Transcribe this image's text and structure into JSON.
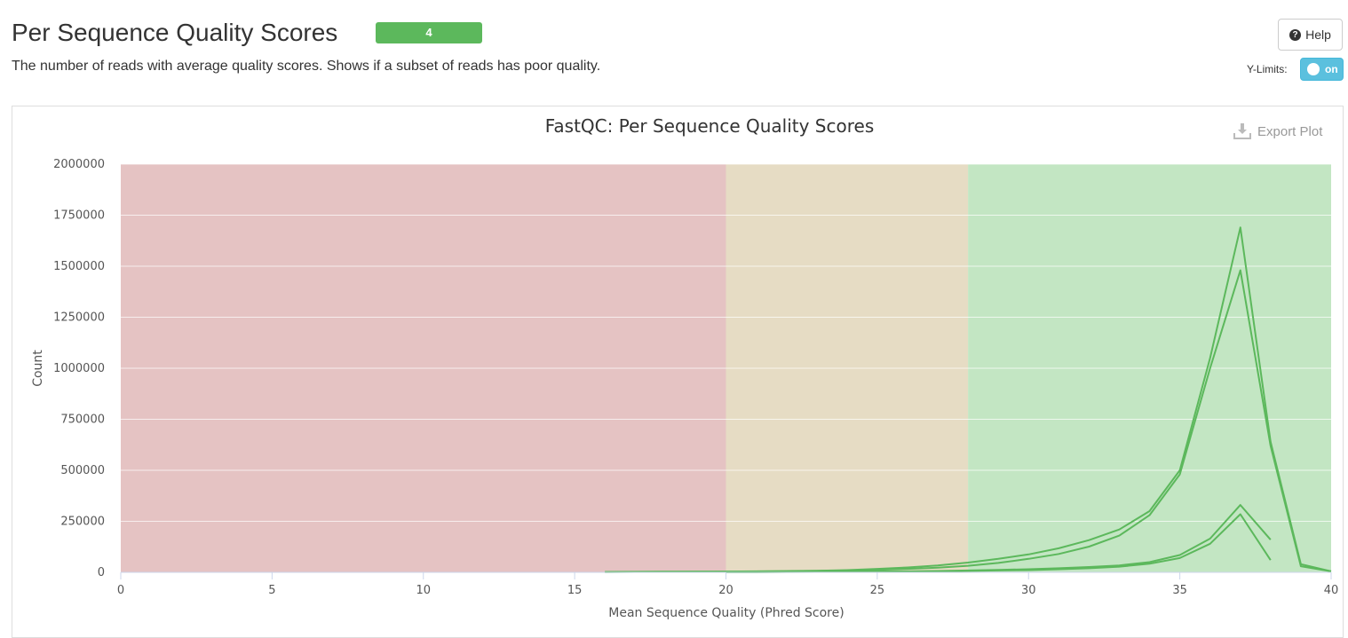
{
  "section": {
    "title": "Per Sequence Quality Scores",
    "badge": "4",
    "description": "The number of reads with average quality scores. Shows if a subset of reads has poor quality."
  },
  "controls": {
    "help_label": "Help",
    "ylimits_label": "Y-Limits:",
    "ylimits_state": "on",
    "export_label": "Export Plot"
  },
  "chart_data": {
    "type": "line",
    "title": "FastQC: Per Sequence Quality Scores",
    "xlabel": "Mean Sequence Quality (Phred Score)",
    "ylabel": "Count",
    "xlim": [
      0,
      40
    ],
    "ylim": [
      0,
      2000000
    ],
    "x_ticks": [
      0,
      5,
      10,
      15,
      20,
      25,
      30,
      35,
      40
    ],
    "y_ticks": [
      0,
      250000,
      500000,
      750000,
      1000000,
      1250000,
      1500000,
      1750000,
      2000000
    ],
    "grid": true,
    "legend": "none",
    "bands": [
      {
        "from": 0,
        "to": 20,
        "color": "#e5c3c3"
      },
      {
        "from": 20,
        "to": 28,
        "color": "#e6dcc4"
      },
      {
        "from": 28,
        "to": 40,
        "color": "#c3e6c3"
      }
    ],
    "line_color": "#5cb85c",
    "series": [
      {
        "x": [
          16,
          17,
          18,
          19,
          20,
          21,
          22,
          23,
          24,
          25,
          26,
          27,
          28,
          29,
          30,
          31,
          32,
          33,
          34,
          35,
          36,
          37,
          38,
          39,
          40
        ],
        "values": [
          2000,
          2500,
          3000,
          3500,
          4000,
          5000,
          6000,
          8000,
          11000,
          17000,
          24000,
          34000,
          48000,
          66000,
          88000,
          118000,
          158000,
          210000,
          300000,
          500000,
          1050000,
          1690000,
          640000,
          40000,
          5000
        ]
      },
      {
        "x": [
          16,
          17,
          18,
          19,
          20,
          21,
          22,
          23,
          24,
          25,
          26,
          27,
          28,
          29,
          30,
          31,
          32,
          33,
          34,
          35,
          36,
          37,
          38,
          39,
          40
        ],
        "values": [
          1500,
          2000,
          2500,
          3000,
          3500,
          4500,
          5500,
          7000,
          9000,
          12000,
          17000,
          23000,
          32000,
          46000,
          66000,
          90000,
          126000,
          180000,
          280000,
          480000,
          1000000,
          1480000,
          620000,
          30000,
          5000
        ]
      },
      {
        "x": [
          20,
          21,
          22,
          23,
          24,
          25,
          26,
          27,
          28,
          29,
          30,
          31,
          32,
          33,
          34,
          35,
          36,
          37,
          38
        ],
        "values": [
          1000,
          1500,
          2000,
          2500,
          3000,
          4000,
          5000,
          6500,
          9000,
          12000,
          15000,
          20000,
          26000,
          34000,
          50000,
          85000,
          165000,
          330000,
          160000
        ]
      },
      {
        "x": [
          20,
          21,
          22,
          23,
          24,
          25,
          26,
          27,
          28,
          29,
          30,
          31,
          32,
          33,
          34,
          35,
          36,
          37,
          38
        ],
        "values": [
          800,
          1200,
          1600,
          2000,
          2500,
          3000,
          4000,
          5000,
          7000,
          9000,
          11000,
          15000,
          20000,
          28000,
          42000,
          70000,
          140000,
          285000,
          60000
        ]
      }
    ]
  }
}
